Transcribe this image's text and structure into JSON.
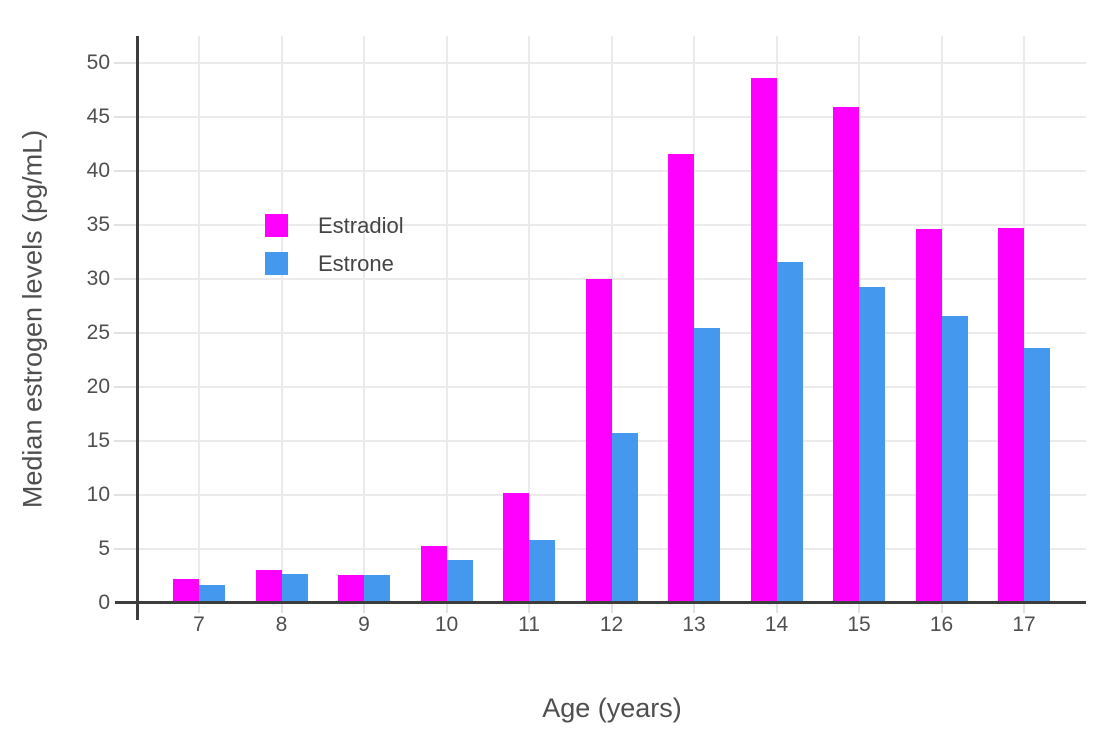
{
  "chart_data": {
    "type": "bar",
    "xlabel": "Age (years)",
    "ylabel": "Median estrogen levels (pg/mL)",
    "categories": [
      "7",
      "8",
      "9",
      "10",
      "11",
      "12",
      "13",
      "14",
      "15",
      "16",
      "17"
    ],
    "series": [
      {
        "name": "Estradiol",
        "color": "#FF00FF",
        "values": [
          2.2,
          3.1,
          2.6,
          5.3,
          10.2,
          30.0,
          41.6,
          48.6,
          45.9,
          34.6,
          34.7
        ]
      },
      {
        "name": "Estrone",
        "color": "#4499EE",
        "values": [
          1.7,
          2.7,
          2.6,
          4.0,
          5.8,
          15.7,
          25.5,
          31.6,
          29.3,
          26.6,
          23.6
        ]
      }
    ],
    "yticks": [
      0,
      5,
      10,
      15,
      20,
      25,
      30,
      35,
      40,
      45,
      50
    ],
    "ylim": [
      0,
      52.5
    ],
    "grid": true,
    "legend_position": "inside-upper-left",
    "colors": {
      "axis": "#3D3D3D",
      "gridline": "#EBEBEB",
      "minor_tick": "#E2E2E2",
      "text": "#4F4F4F"
    }
  }
}
